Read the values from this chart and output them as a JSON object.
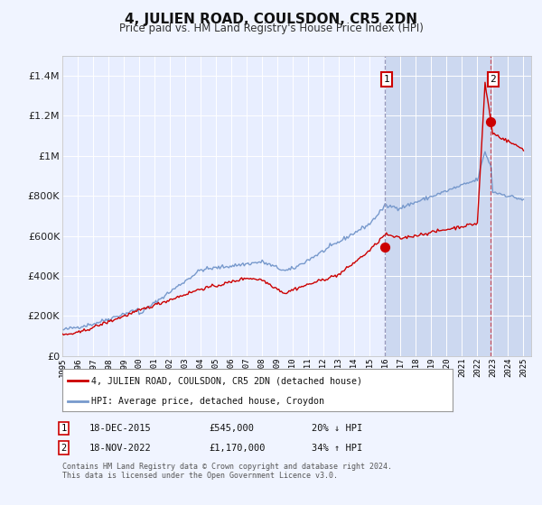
{
  "title": "4, JULIEN ROAD, COULSDON, CR5 2DN",
  "subtitle": "Price paid vs. HM Land Registry's House Price Index (HPI)",
  "ylim": [
    0,
    1500000
  ],
  "yticks": [
    0,
    200000,
    400000,
    600000,
    800000,
    1000000,
    1200000,
    1400000
  ],
  "ytick_labels": [
    "£0",
    "£200K",
    "£400K",
    "£600K",
    "£800K",
    "£1M",
    "£1.2M",
    "£1.4M"
  ],
  "bg_color": "#f0f4ff",
  "plot_bg": "#e8eeff",
  "highlight_bg": "#ccd8f0",
  "grid_color": "#ffffff",
  "red_line_color": "#cc0000",
  "blue_line_color": "#7799cc",
  "sale1_year": 2015.96,
  "sale1_price": 545000,
  "sale1_label": "18-DEC-2015",
  "sale1_amount": "£545,000",
  "sale1_pct": "20% ↓ HPI",
  "sale2_year": 2022.88,
  "sale2_price": 1170000,
  "sale2_label": "18-NOV-2022",
  "sale2_amount": "£1,170,000",
  "sale2_pct": "34% ↑ HPI",
  "legend_line1": "4, JULIEN ROAD, COULSDON, CR5 2DN (detached house)",
  "legend_line2": "HPI: Average price, detached house, Croydon",
  "footer1": "Contains HM Land Registry data © Crown copyright and database right 2024.",
  "footer2": "This data is licensed under the Open Government Licence v3.0.",
  "start_year": 1995,
  "end_year": 2025
}
